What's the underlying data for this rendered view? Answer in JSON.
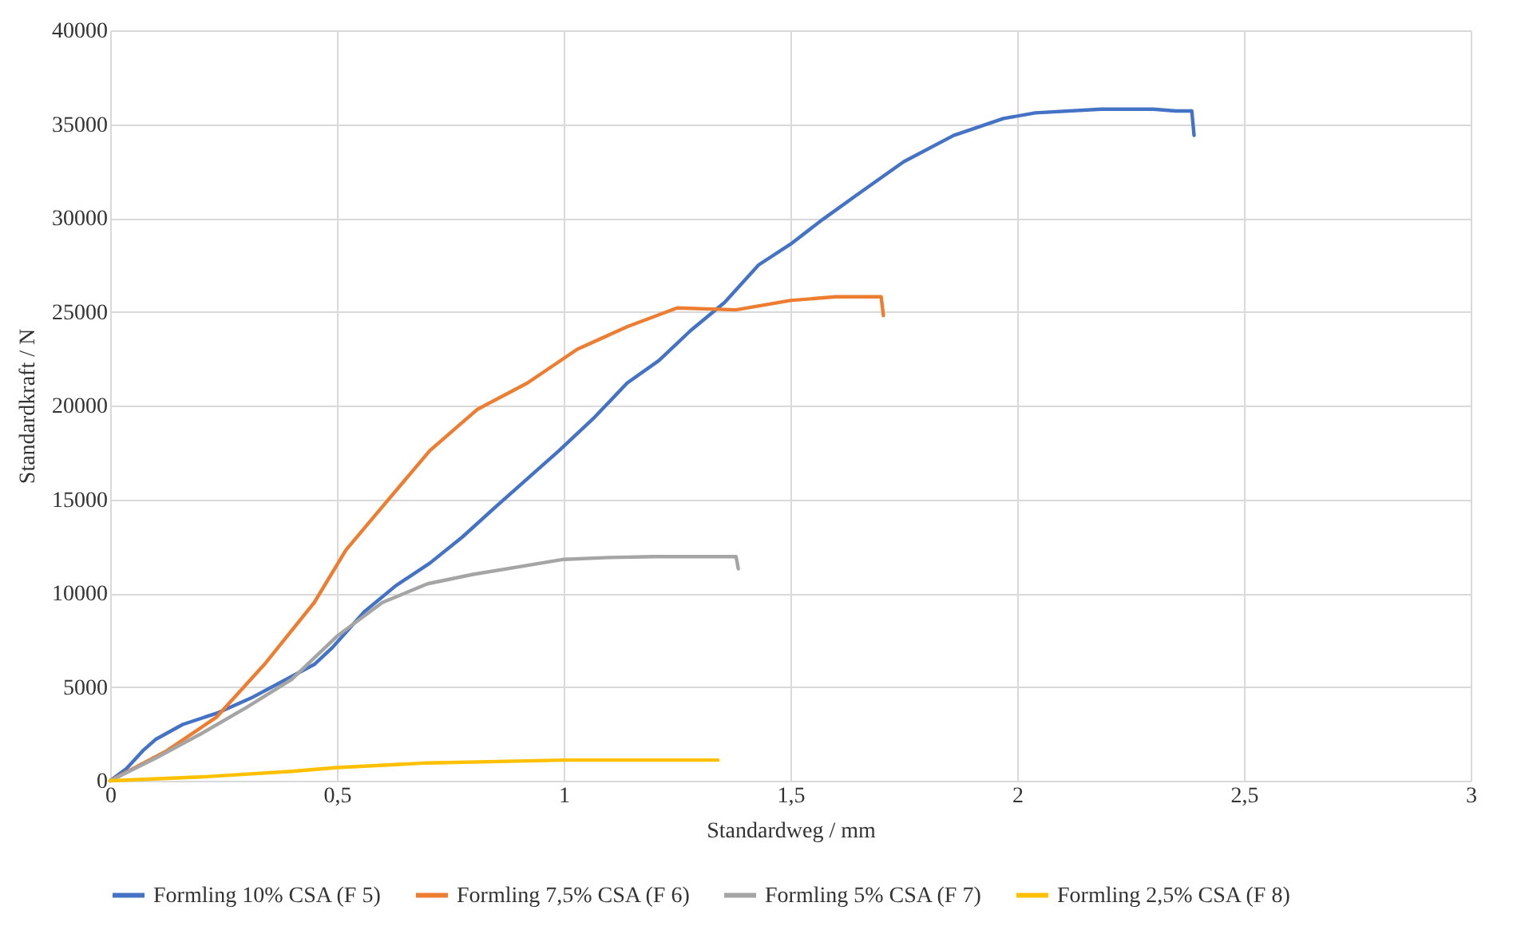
{
  "chart_data": {
    "type": "line",
    "xlabel": "Standardweg / mm",
    "ylabel": "Standardkraft / N",
    "xlim": [
      0,
      3
    ],
    "xticks": [
      0,
      {
        "value": 0.5,
        "label": "0,5"
      },
      1,
      {
        "value": 1.5,
        "label": "1,5"
      },
      2,
      {
        "value": 2.5,
        "label": "2,5"
      },
      3
    ],
    "ylim": [
      0,
      40000
    ],
    "yticks": [
      0,
      5000,
      10000,
      15000,
      20000,
      25000,
      30000,
      35000,
      40000
    ],
    "grid": true,
    "legend": "bottom",
    "series": [
      {
        "name": "Formling 10% CSA (F 5)",
        "color": "#4472c4",
        "x": [
          0,
          0.036,
          0.072,
          0.1,
          0.16,
          0.235,
          0.31,
          0.38,
          0.45,
          0.49,
          0.56,
          0.63,
          0.705,
          0.777,
          0.85,
          0.92,
          0.99,
          1.065,
          1.14,
          1.21,
          1.28,
          1.355,
          1.43,
          1.5,
          1.57,
          1.645,
          1.75,
          1.86,
          1.97,
          2.04,
          2.185,
          2.3,
          2.35,
          2.385,
          2.39
        ],
        "values": [
          0,
          650,
          1600,
          2200,
          3000,
          3600,
          4400,
          5300,
          6200,
          7100,
          9000,
          10400,
          11600,
          13000,
          14600,
          16100,
          17600,
          19300,
          21200,
          22400,
          24000,
          25500,
          27500,
          28600,
          29900,
          31200,
          33000,
          34400,
          35300,
          35600,
          35800,
          35800,
          35700,
          35700,
          34400
        ]
      },
      {
        "name": "Formling 7,5% CSA (F 6)",
        "color": "#ed7d31",
        "x": [
          0,
          0.125,
          0.235,
          0.34,
          0.45,
          0.52,
          0.6,
          0.705,
          0.81,
          0.92,
          1.03,
          1.14,
          1.25,
          1.38,
          1.5,
          1.6,
          1.7,
          1.705
        ],
        "values": [
          0,
          1600,
          3400,
          6200,
          9500,
          12300,
          14600,
          17600,
          19800,
          21200,
          23000,
          24200,
          25200,
          25100,
          25600,
          25800,
          25800,
          24800
        ]
      },
      {
        "name": "Formling 5% CSA (F 7)",
        "color": "#a5a5a5",
        "x": [
          0,
          0.1,
          0.2,
          0.3,
          0.4,
          0.5,
          0.6,
          0.7,
          0.8,
          0.9,
          1.0,
          1.1,
          1.2,
          1.38,
          1.385
        ],
        "values": [
          0,
          1200,
          2500,
          3900,
          5400,
          7700,
          9500,
          10500,
          11000,
          11400,
          11800,
          11900,
          11950,
          11950,
          11300
        ]
      },
      {
        "name": "Formling 2,5% CSA (F 8)",
        "color": "#ffc000",
        "x": [
          0,
          0.2,
          0.4,
          0.5,
          0.7,
          0.9,
          1.0,
          1.2,
          1.34
        ],
        "values": [
          0,
          200,
          500,
          700,
          950,
          1050,
          1100,
          1100,
          1100
        ]
      }
    ]
  }
}
